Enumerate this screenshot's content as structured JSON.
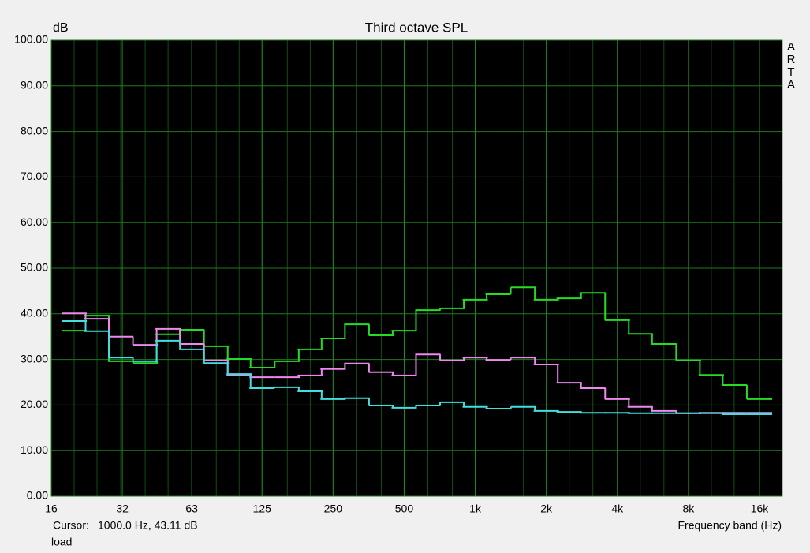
{
  "chart_data": {
    "type": "step",
    "title": "Third octave SPL",
    "ylabel": "dB",
    "xlabel": "Frequency band (Hz)",
    "watermark": "ARTA",
    "cursor_label": "Cursor:",
    "cursor_value": "1000.0 Hz, 43.11 dB",
    "footer": "load",
    "log_x": true,
    "grid": true,
    "x": [
      20,
      25,
      31.5,
      40,
      50,
      63,
      80,
      100,
      125,
      160,
      200,
      250,
      315,
      400,
      500,
      630,
      800,
      1000,
      1250,
      1600,
      2000,
      2500,
      3150,
      4000,
      5000,
      6300,
      8000,
      10000,
      12500,
      16000
    ],
    "series": [
      {
        "color": "#25dc25",
        "values": [
          36.3,
          39.6,
          29.6,
          29.2,
          35.5,
          36.5,
          32.9,
          30.1,
          28.2,
          29.6,
          32.2,
          34.6,
          37.7,
          35.3,
          36.3,
          40.8,
          41.2,
          43.1,
          44.3,
          45.8,
          43.1,
          43.4,
          44.6,
          38.6,
          35.6,
          33.4,
          29.8,
          26.6,
          24.4,
          21.3
        ]
      },
      {
        "color": "#ee88ee",
        "values": [
          40.1,
          38.9,
          35.0,
          33.2,
          36.7,
          33.4,
          29.8,
          26.6,
          26.1,
          26.1,
          26.5,
          27.9,
          29.1,
          27.2,
          26.5,
          31.1,
          29.8,
          30.4,
          29.9,
          30.4,
          28.9,
          24.9,
          23.7,
          21.3,
          19.6,
          18.7,
          18.2,
          18.3,
          18.3,
          18.3
        ]
      },
      {
        "color": "#44dede",
        "values": [
          38.4,
          36.2,
          30.4,
          29.6,
          34.1,
          32.2,
          29.2,
          26.8,
          23.7,
          23.9,
          23.0,
          21.3,
          21.5,
          19.9,
          19.4,
          19.9,
          20.6,
          19.6,
          19.2,
          19.6,
          18.7,
          18.5,
          18.3,
          18.3,
          18.2,
          18.2,
          18.2,
          18.2,
          18.0,
          18.0
        ]
      }
    ],
    "xlim": [
      16,
      20000
    ],
    "xticks": [
      16,
      32,
      63,
      125,
      250,
      500,
      {
        "value": 1000,
        "label": "1k"
      },
      {
        "value": 2000,
        "label": "2k"
      },
      {
        "value": 4000,
        "label": "4k"
      },
      {
        "value": 8000,
        "label": "8k"
      },
      {
        "value": 16000,
        "label": "16k"
      }
    ],
    "ylim": [
      0,
      100
    ],
    "yticks": [
      {
        "value": 0,
        "label": "0.00"
      },
      {
        "value": 10,
        "label": "10.00"
      },
      {
        "value": 20,
        "label": "20.00"
      },
      {
        "value": 30,
        "label": "30.00"
      },
      {
        "value": 40,
        "label": "40.00"
      },
      {
        "value": 50,
        "label": "50.00"
      },
      {
        "value": 60,
        "label": "60.00"
      },
      {
        "value": 70,
        "label": "70.00"
      },
      {
        "value": 80,
        "label": "80.00"
      },
      {
        "value": 90,
        "label": "90.00"
      },
      {
        "value": 100,
        "label": "100.00"
      }
    ]
  }
}
